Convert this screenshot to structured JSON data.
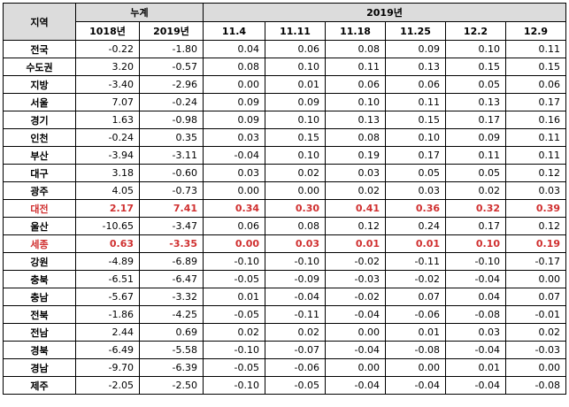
{
  "header": {
    "region": "지역",
    "cumulative": "누계",
    "year_group": "2019년",
    "cum_cols": [
      "1018년",
      "2019년"
    ],
    "week_cols": [
      "11.4",
      "11.11",
      "11.18",
      "11.25",
      "12.2",
      "12.9"
    ]
  },
  "rows": [
    {
      "region": "전국",
      "values": [
        "-0.22",
        "-1.80",
        "0.04",
        "0.06",
        "0.08",
        "0.09",
        "0.10",
        "0.11"
      ],
      "highlight": false
    },
    {
      "region": "수도권",
      "values": [
        "3.20",
        "-0.57",
        "0.08",
        "0.10",
        "0.11",
        "0.13",
        "0.15",
        "0.15"
      ],
      "highlight": false
    },
    {
      "region": "지방",
      "values": [
        "-3.40",
        "-2.96",
        "0.00",
        "0.01",
        "0.06",
        "0.06",
        "0.05",
        "0.06"
      ],
      "highlight": false
    },
    {
      "region": "서울",
      "values": [
        "7.07",
        "-0.24",
        "0.09",
        "0.09",
        "0.10",
        "0.11",
        "0.13",
        "0.17"
      ],
      "highlight": false
    },
    {
      "region": "경기",
      "values": [
        "1.63",
        "-0.98",
        "0.09",
        "0.10",
        "0.13",
        "0.15",
        "0.17",
        "0.16"
      ],
      "highlight": false
    },
    {
      "region": "인천",
      "values": [
        "-0.24",
        "0.35",
        "0.03",
        "0.15",
        "0.08",
        "0.10",
        "0.09",
        "0.11"
      ],
      "highlight": false
    },
    {
      "region": "부산",
      "values": [
        "-3.94",
        "-3.11",
        "-0.04",
        "0.10",
        "0.19",
        "0.17",
        "0.11",
        "0.11"
      ],
      "highlight": false
    },
    {
      "region": "대구",
      "values": [
        "3.18",
        "-0.60",
        "0.03",
        "0.02",
        "0.03",
        "0.05",
        "0.05",
        "0.12"
      ],
      "highlight": false
    },
    {
      "region": "광주",
      "values": [
        "4.05",
        "-0.73",
        "0.00",
        "0.00",
        "0.02",
        "0.03",
        "0.02",
        "0.03"
      ],
      "highlight": false
    },
    {
      "region": "대전",
      "values": [
        "2.17",
        "7.41",
        "0.34",
        "0.30",
        "0.41",
        "0.36",
        "0.32",
        "0.39"
      ],
      "highlight": true
    },
    {
      "region": "울산",
      "values": [
        "-10.65",
        "-3.47",
        "0.06",
        "0.08",
        "0.12",
        "0.24",
        "0.17",
        "0.12"
      ],
      "highlight": false
    },
    {
      "region": "세종",
      "values": [
        "0.63",
        "-3.35",
        "0.00",
        "0.03",
        "0.01",
        "0.01",
        "0.10",
        "0.19"
      ],
      "highlight": true
    },
    {
      "region": "강원",
      "values": [
        "-4.89",
        "-6.89",
        "-0.10",
        "-0.10",
        "-0.02",
        "-0.11",
        "-0.10",
        "-0.17"
      ],
      "highlight": false
    },
    {
      "region": "충북",
      "values": [
        "-6.51",
        "-6.47",
        "-0.05",
        "-0.09",
        "-0.03",
        "-0.02",
        "-0.04",
        "0.00"
      ],
      "highlight": false
    },
    {
      "region": "충남",
      "values": [
        "-5.67",
        "-3.32",
        "0.01",
        "-0.04",
        "-0.02",
        "0.07",
        "0.04",
        "0.07"
      ],
      "highlight": false
    },
    {
      "region": "전북",
      "values": [
        "-1.86",
        "-4.25",
        "-0.05",
        "-0.11",
        "-0.04",
        "-0.06",
        "-0.08",
        "-0.01"
      ],
      "highlight": false
    },
    {
      "region": "전남",
      "values": [
        "2.44",
        "0.69",
        "0.02",
        "0.02",
        "0.00",
        "0.01",
        "0.03",
        "0.02"
      ],
      "highlight": false
    },
    {
      "region": "경북",
      "values": [
        "-6.49",
        "-5.58",
        "-0.10",
        "-0.07",
        "-0.04",
        "-0.08",
        "-0.04",
        "-0.03"
      ],
      "highlight": false
    },
    {
      "region": "경남",
      "values": [
        "-9.70",
        "-6.39",
        "-0.05",
        "-0.06",
        "0.00",
        "0.00",
        "0.01",
        "0.00"
      ],
      "highlight": false
    },
    {
      "region": "제주",
      "values": [
        "-2.05",
        "-2.50",
        "-0.10",
        "-0.05",
        "-0.04",
        "-0.04",
        "-0.04",
        "-0.08"
      ],
      "highlight": false
    }
  ],
  "colors": {
    "highlight_text": "#d03030",
    "header_bg": "#dcdcdc",
    "border": "#000000"
  }
}
